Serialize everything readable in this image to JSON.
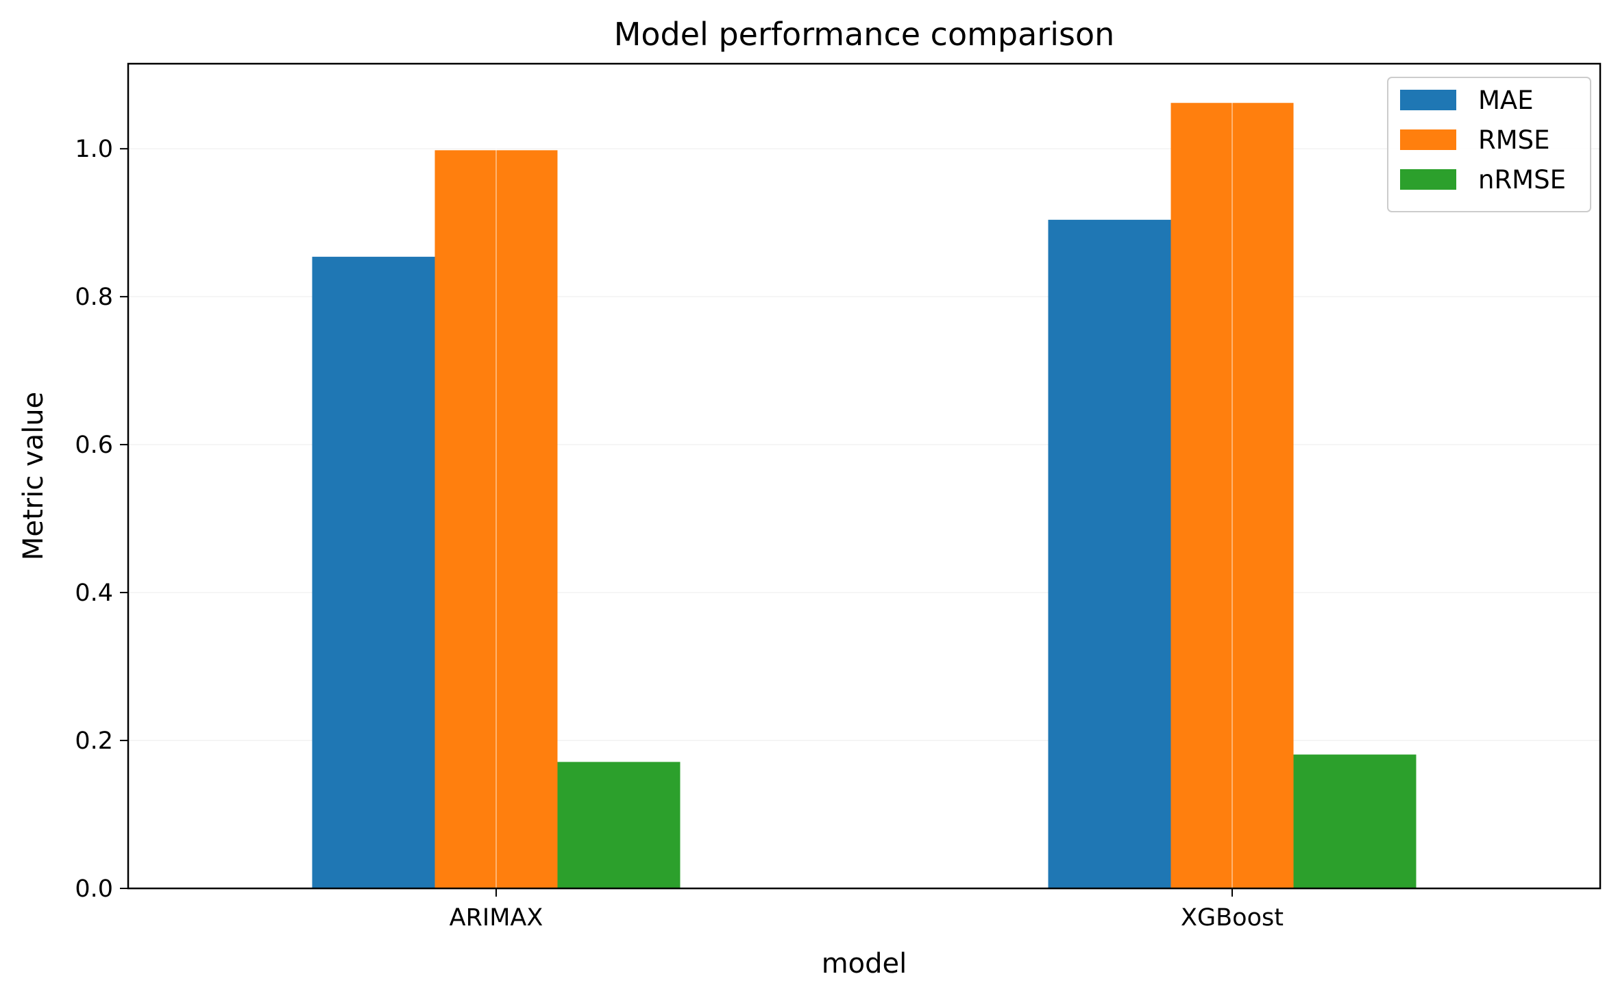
{
  "chart_data": {
    "type": "bar",
    "title": "Model performance comparison",
    "xlabel": "model",
    "ylabel": "Metric value",
    "categories": [
      "ARIMAX",
      "XGBoost"
    ],
    "series": [
      {
        "name": "MAE",
        "color": "#1f77b4",
        "values": [
          0.854,
          0.904
        ]
      },
      {
        "name": "RMSE",
        "color": "#ff7f0e",
        "values": [
          0.998,
          1.062
        ]
      },
      {
        "name": "nRMSE",
        "color": "#2ca02c",
        "values": [
          0.171,
          0.181
        ]
      }
    ],
    "ylim": [
      0,
      1.115
    ],
    "yticks": [
      0.0,
      0.2,
      0.4,
      0.6,
      0.8,
      1.0
    ],
    "ytick_labels": [
      "0.0",
      "0.2",
      "0.4",
      "0.6",
      "0.8",
      "1.0"
    ],
    "grid": true,
    "legend_position": "top-right"
  }
}
